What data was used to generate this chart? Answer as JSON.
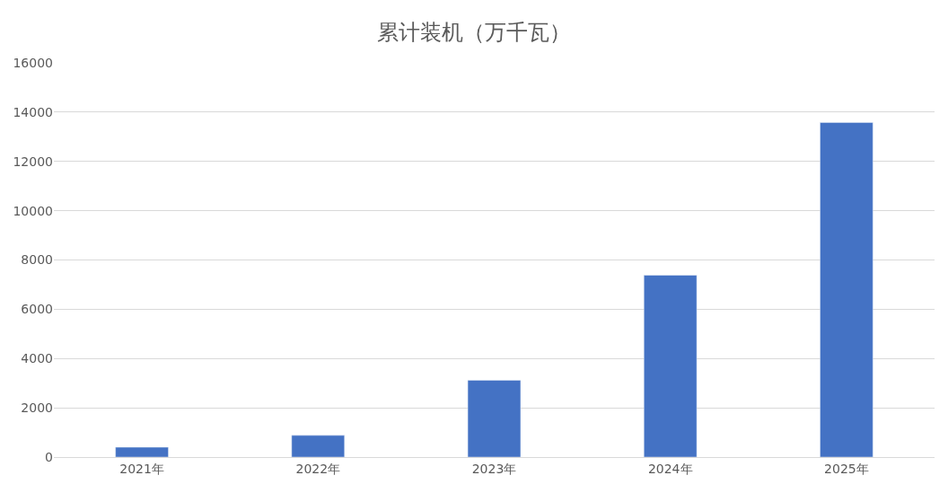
{
  "chart_data": {
    "type": "bar",
    "title": "累计装机（万千瓦）",
    "categories": [
      "2021年",
      "2022年",
      "2023年",
      "2024年",
      "2025年"
    ],
    "values": [
      400,
      880,
      3120,
      7380,
      13580
    ],
    "color": "#4472c4",
    "ylim": [
      0,
      16000
    ],
    "yticks": [
      0,
      2000,
      4000,
      6000,
      8000,
      10000,
      12000,
      14000,
      16000
    ],
    "grid": "y",
    "legend": false
  }
}
